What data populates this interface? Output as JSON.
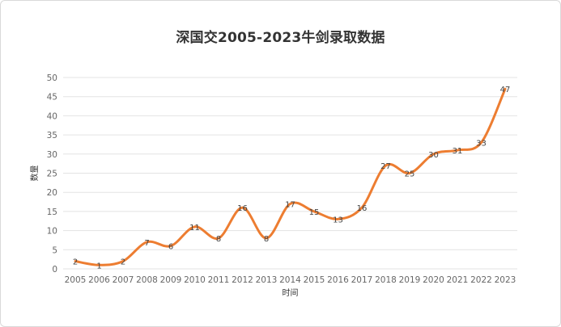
{
  "chart_data": {
    "type": "line",
    "title": "深国交2005-2023牛剑录取数据",
    "xlabel": "时间",
    "ylabel": "数量",
    "categories": [
      "2005",
      "2006",
      "2007",
      "2008",
      "2009",
      "2010",
      "2011",
      "2012",
      "2013",
      "2014",
      "2015",
      "2016",
      "2017",
      "2018",
      "2019",
      "2020",
      "2021",
      "2022",
      "2023"
    ],
    "series": [
      {
        "values": [
          2,
          1,
          2,
          7,
          6,
          11,
          8,
          16,
          8,
          17,
          15,
          13,
          16,
          27,
          25,
          30,
          31,
          33,
          47
        ]
      }
    ],
    "ylim": [
      0,
      50
    ],
    "yticks": [
      0,
      5,
      10,
      15,
      20,
      25,
      30,
      35,
      40,
      45,
      50
    ],
    "grid": true,
    "legend": "none",
    "line_color": "#ED7D31",
    "smooth": true
  }
}
